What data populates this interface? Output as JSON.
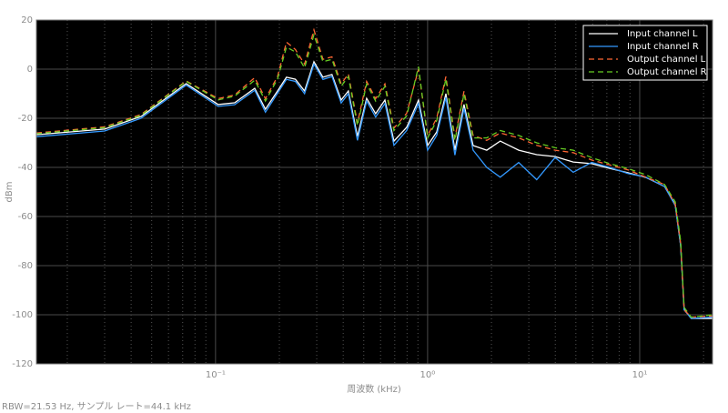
{
  "chart_data": {
    "type": "line",
    "xlabel": "周波数 (kHz)",
    "ylabel": "dBm",
    "footer": "RBW=21.53 Hz, サンプル レート=44.1 kHz",
    "xlog": true,
    "grid": true,
    "minor_grid": true,
    "legend": "upper right",
    "xlim": [
      0.0143,
      22.05
    ],
    "ylim": [
      -120,
      20
    ],
    "xticks": [
      {
        "value": 0.1,
        "label": "10⁻¹"
      },
      {
        "value": 1,
        "label": "10⁰"
      },
      {
        "value": 10,
        "label": "10¹"
      }
    ],
    "yticks": [
      -120,
      -100,
      -80,
      -60,
      -40,
      -20,
      0,
      20
    ],
    "x": [
      0.0143,
      0.03,
      0.0445,
      0.0727,
      0.103,
      0.123,
      0.153,
      0.172,
      0.196,
      0.216,
      0.238,
      0.263,
      0.291,
      0.321,
      0.354,
      0.391,
      0.423,
      0.467,
      0.516,
      0.569,
      0.629,
      0.694,
      0.797,
      0.906,
      1.0,
      1.104,
      1.219,
      1.345,
      1.485,
      1.639,
      1.9,
      2.2,
      2.687,
      3.27,
      3.99,
      4.86,
      5.93,
      7.22,
      8.8,
      10.7,
      13.1,
      14.7,
      15.6,
      16.2,
      17.5,
      22.0
    ],
    "series": [
      {
        "name": "Input channel L",
        "color": "#ffffff",
        "style": "solid",
        "values": [
          -26.7,
          -24.4,
          -19.3,
          -5.9,
          -14.4,
          -13.7,
          -7.8,
          -16.3,
          -8.9,
          -3.3,
          -4.1,
          -8.9,
          3,
          -3.3,
          -2.2,
          -12.6,
          -8.9,
          -27.4,
          -11.9,
          -18.1,
          -12.6,
          -29.3,
          -23.7,
          -12.6,
          -31.1,
          -25.6,
          -10,
          -33,
          -14.4,
          -31.1,
          -33,
          -29.3,
          -33,
          -34.8,
          -35.6,
          -37.8,
          -38.5,
          -40.4,
          -42.2,
          -44.1,
          -47.8,
          -55.2,
          -71.9,
          -97.8,
          -101.5,
          -101.5
        ]
      },
      {
        "name": "Input channel R",
        "color": "#3399ff",
        "style": "solid",
        "values": [
          -27.5,
          -25.2,
          -20,
          -6.5,
          -15.2,
          -14.5,
          -8.6,
          -17.5,
          -9.8,
          -4.2,
          -5,
          -10,
          2,
          -4.2,
          -3,
          -13.8,
          -10,
          -29,
          -13,
          -19.5,
          -14,
          -31,
          -25,
          -14,
          -33,
          -27,
          -11.5,
          -35,
          -16,
          -33,
          -40,
          -44,
          -38,
          -45,
          -36,
          -42,
          -38,
          -40,
          -42.5,
          -44,
          -47.8,
          -55.5,
          -72,
          -98,
          -101.5,
          -101
        ]
      },
      {
        "name": "Output channel L",
        "color": "#ff6633",
        "style": "dashed",
        "values": [
          -26,
          -23.5,
          -18.5,
          -4.8,
          -12,
          -10.5,
          -3.5,
          -12,
          -3,
          11,
          8,
          2,
          16,
          4,
          5,
          -6,
          -2,
          -22,
          -5,
          -12,
          -6,
          -24,
          -18,
          0,
          -27,
          -20,
          -3,
          -28,
          -9,
          -27,
          -29,
          -26,
          -28,
          -31,
          -33,
          -34,
          -37,
          -39,
          -41,
          -44,
          -47,
          -55,
          -71,
          -98,
          -101,
          -100.5
        ]
      },
      {
        "name": "Output channel R",
        "color": "#66cc22",
        "style": "dashed",
        "values": [
          -26.3,
          -23.8,
          -18.8,
          -5,
          -12.5,
          -11,
          -4.5,
          -13,
          -4,
          9,
          7,
          0.5,
          14,
          3,
          4,
          -7,
          -3,
          -23,
          -6,
          -13,
          -7,
          -25,
          -19,
          1,
          -28,
          -21,
          -4,
          -29,
          -10,
          -28,
          -28,
          -25,
          -27,
          -30,
          -32,
          -33,
          -36,
          -38.5,
          -40.5,
          -43,
          -47,
          -54,
          -70,
          -97,
          -101,
          -100
        ]
      }
    ]
  }
}
